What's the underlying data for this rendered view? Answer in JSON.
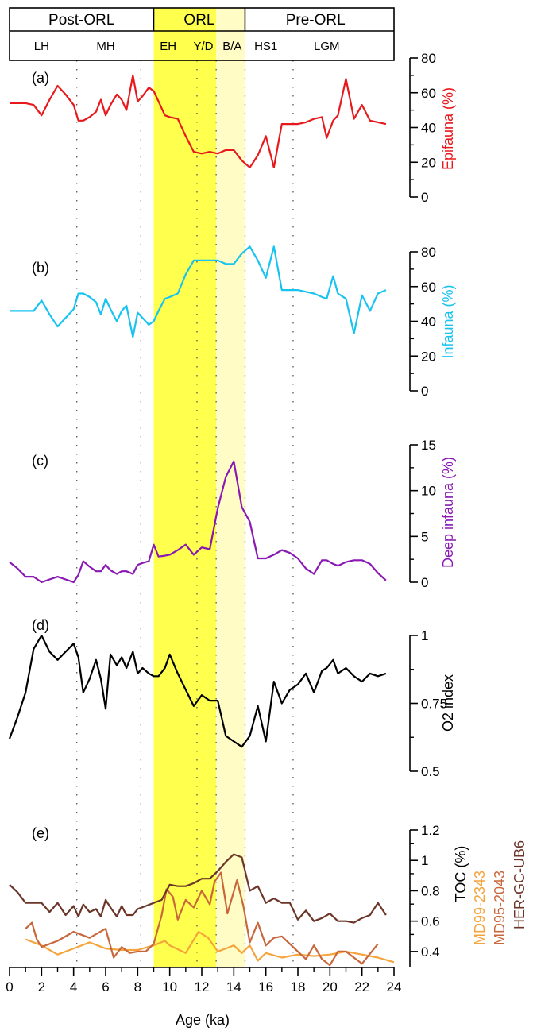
{
  "periods": [
    {
      "label": "Post-ORL",
      "start": 0,
      "end": 9
    },
    {
      "label": "ORL",
      "start": 9,
      "end": 14.7
    },
    {
      "label": "Pre-ORL",
      "start": 14.7,
      "end": 23.5
    }
  ],
  "stages": [
    {
      "label": "LH",
      "center": 2
    },
    {
      "label": "MH",
      "center": 6
    },
    {
      "label": "EH",
      "center": 9.9
    },
    {
      "label": "Y/D",
      "center": 12.1
    },
    {
      "label": "B/A",
      "center": 13.9
    },
    {
      "label": "HS1",
      "center": 16
    },
    {
      "label": "LGM",
      "center": 19.8
    }
  ],
  "stage_boundaries": [
    4.2,
    8.2,
    11.7,
    12.9,
    14.7,
    17.7
  ],
  "shading": [
    {
      "start": 9,
      "end": 12.9,
      "color": "#ffff4d"
    },
    {
      "start": 12.9,
      "end": 14.7,
      "color": "#fffcc6"
    }
  ],
  "x_axis": {
    "label": "Age (ka)",
    "range": [
      0,
      24
    ],
    "ticks": [
      "0",
      "2",
      "4",
      "6",
      "8",
      "10",
      "12",
      "14",
      "16",
      "18",
      "20",
      "22",
      "24"
    ]
  },
  "chart_data": [
    {
      "type": "line",
      "panel": "(a)",
      "ylabel": "Epifauna (%)",
      "ylim": [
        0,
        80
      ],
      "ticks": [
        "0",
        "20",
        "40",
        "60",
        "80"
      ],
      "series": [
        {
          "color": "#e8191d",
          "x": [
            0,
            0.5,
            1,
            1.5,
            2,
            2.5,
            3,
            3.5,
            4,
            4.3,
            4.6,
            5,
            5.4,
            5.7,
            6,
            6.3,
            6.7,
            7,
            7.3,
            7.7,
            8,
            8.3,
            8.7,
            9,
            9.3,
            9.7,
            10,
            10.5,
            11,
            11.5,
            12,
            12.5,
            13,
            13.5,
            14,
            14.5,
            15,
            15.5,
            16,
            16.5,
            17,
            17.5,
            18,
            18.5,
            19,
            19.5,
            19.8,
            20.2,
            20.5,
            21,
            21.5,
            22,
            22.5,
            23,
            23.5
          ],
          "y": [
            54,
            54,
            54,
            53,
            47,
            56,
            64,
            59,
            53,
            44,
            44,
            46,
            49,
            56,
            47,
            53,
            59,
            56,
            50,
            70,
            55,
            58,
            63,
            61,
            55,
            47,
            46,
            45,
            35,
            26,
            25,
            26,
            25,
            27,
            27,
            21,
            17,
            24,
            35,
            17,
            42,
            42,
            42,
            43,
            45,
            46,
            34,
            44,
            47,
            68,
            45,
            53,
            44,
            43,
            42
          ]
        }
      ]
    },
    {
      "type": "line",
      "panel": "(b)",
      "ylabel": "Infauna (%)",
      "ylim": [
        0,
        80
      ],
      "ticks": [
        "0",
        "20",
        "40",
        "60",
        "80"
      ],
      "series": [
        {
          "color": "#19c3f0",
          "x": [
            0,
            0.5,
            1,
            1.5,
            2,
            2.5,
            3,
            3.5,
            4,
            4.3,
            4.6,
            5,
            5.4,
            5.7,
            6,
            6.3,
            6.7,
            7,
            7.3,
            7.7,
            8,
            8.3,
            8.7,
            9,
            9.3,
            9.7,
            10,
            10.5,
            11,
            11.5,
            12,
            12.5,
            13,
            13.5,
            14,
            14.5,
            15,
            15.5,
            16,
            16.5,
            17,
            17.5,
            18,
            18.5,
            19,
            19.5,
            19.8,
            20.2,
            20.5,
            21,
            21.5,
            22,
            22.5,
            23,
            23.5
          ],
          "y": [
            46,
            46,
            46,
            46,
            52,
            44,
            37,
            42,
            47,
            56,
            56,
            54,
            51,
            44,
            53,
            47,
            40,
            46,
            49,
            31,
            45,
            42,
            38,
            40,
            46,
            53,
            54,
            56,
            67,
            75,
            75,
            75,
            75,
            73,
            73,
            79,
            83,
            75,
            65,
            83,
            58,
            58,
            58,
            57,
            56,
            54,
            53,
            66,
            56,
            53,
            33,
            55,
            46,
            56,
            58
          ]
        }
      ]
    },
    {
      "type": "line",
      "panel": "(c)",
      "ylabel": "Deep infauna (%)",
      "ylim": [
        0,
        15
      ],
      "ticks": [
        "0",
        "5",
        "10",
        "15"
      ],
      "series": [
        {
          "color": "#8a19b4",
          "x": [
            0,
            0.5,
            1,
            1.5,
            2,
            2.5,
            3,
            3.5,
            4,
            4.3,
            4.6,
            5,
            5.4,
            5.7,
            6,
            6.3,
            6.7,
            7,
            7.3,
            7.7,
            8,
            8.3,
            8.7,
            9,
            9.3,
            9.7,
            10,
            10.5,
            11,
            11.5,
            12,
            12.5,
            13,
            13.5,
            14,
            14.5,
            15,
            15.5,
            16,
            16.5,
            17,
            17.5,
            18,
            18.5,
            19,
            19.5,
            19.8,
            20.2,
            20.5,
            21,
            21.5,
            22,
            22.5,
            23,
            23.5
          ],
          "y": [
            2.2,
            1.5,
            0.6,
            0.6,
            0,
            0.3,
            0.6,
            0.3,
            0,
            0.8,
            2.3,
            1.7,
            1.2,
            1.2,
            1.9,
            1.3,
            0.9,
            1.2,
            1.2,
            0.9,
            1.9,
            2.1,
            2.3,
            4.1,
            2.8,
            2.9,
            3,
            3.5,
            4.1,
            3,
            3.8,
            3.6,
            8.1,
            11.5,
            13.2,
            8.2,
            6.6,
            2.6,
            2.6,
            3.0,
            3.5,
            3.2,
            2.6,
            1.5,
            0.9,
            2.4,
            2.4,
            2.0,
            1.8,
            2.2,
            2.4,
            2.4,
            2.0,
            1.0,
            0.2
          ]
        }
      ]
    },
    {
      "type": "line",
      "panel": "(d)",
      "ylabel": "O2 index",
      "ylim": [
        0.5,
        1
      ],
      "ticks": [
        "0.5",
        "0.75",
        "1"
      ],
      "series": [
        {
          "color": "#000000",
          "x": [
            0,
            0.5,
            1,
            1.5,
            2,
            2.5,
            3,
            3.5,
            4,
            4.3,
            4.6,
            5,
            5.4,
            5.7,
            6,
            6.3,
            6.7,
            7,
            7.3,
            7.7,
            8,
            8.3,
            8.7,
            9,
            9.3,
            9.7,
            10,
            10.5,
            11,
            11.5,
            12,
            12.5,
            13,
            13.5,
            14,
            14.5,
            15,
            15.5,
            16,
            16.5,
            17,
            17.5,
            18,
            18.5,
            19,
            19.5,
            19.8,
            20.2,
            20.5,
            21,
            21.5,
            22,
            22.5,
            23,
            23.5
          ],
          "y": [
            0.62,
            0.7,
            0.79,
            0.95,
            1.0,
            0.94,
            0.91,
            0.94,
            0.97,
            0.92,
            0.79,
            0.84,
            0.91,
            0.84,
            0.73,
            0.93,
            0.89,
            0.92,
            0.88,
            0.94,
            0.86,
            0.88,
            0.86,
            0.85,
            0.85,
            0.88,
            0.93,
            0.86,
            0.8,
            0.74,
            0.78,
            0.76,
            0.76,
            0.63,
            0.61,
            0.59,
            0.63,
            0.74,
            0.61,
            0.83,
            0.75,
            0.8,
            0.82,
            0.86,
            0.79,
            0.87,
            0.88,
            0.91,
            0.86,
            0.88,
            0.85,
            0.83,
            0.86,
            0.85,
            0.86
          ]
        }
      ]
    },
    {
      "type": "line",
      "panel": "(e)",
      "ylabel": "TOC (%)",
      "ylim": [
        0.3,
        1.2
      ],
      "ticks": [
        "0.4",
        "0.6",
        "0.8",
        "1",
        "1.2"
      ],
      "series": [
        {
          "name": "MD99-2343",
          "color": "#f5a43c",
          "x": [
            1,
            1.5,
            2,
            3,
            4,
            5,
            6,
            7,
            8,
            9,
            9.7,
            10,
            11,
            11.8,
            12.4,
            13,
            13.5,
            14,
            14.5,
            15,
            15.5,
            16,
            17,
            18,
            19,
            20,
            21,
            22,
            23,
            24
          ],
          "y": [
            0.48,
            0.46,
            0.44,
            0.38,
            0.42,
            0.46,
            0.42,
            0.41,
            0.41,
            0.44,
            0.47,
            0.44,
            0.39,
            0.53,
            0.49,
            0.4,
            0.42,
            0.44,
            0.39,
            0.44,
            0.34,
            0.39,
            0.36,
            0.38,
            0.37,
            0.38,
            0.4,
            0.38,
            0.36,
            0.33
          ]
        },
        {
          "name": "MD95-2043",
          "color": "#c9673c",
          "x": [
            1,
            1.4,
            1.7,
            2,
            3,
            4,
            5,
            6,
            6.5,
            7,
            7.5,
            8,
            8.5,
            9,
            9.5,
            9.8,
            10.2,
            10.5,
            11,
            11.5,
            12,
            12.5,
            12.8,
            13.2,
            13.6,
            14.2,
            14.6,
            15,
            15.5,
            16,
            16.5,
            17,
            18,
            18.5,
            19,
            19.5,
            20,
            20.5,
            21,
            22,
            23
          ],
          "y": [
            0.55,
            0.59,
            0.48,
            0.43,
            0.47,
            0.53,
            0.49,
            0.55,
            0.36,
            0.43,
            0.39,
            0.4,
            0.4,
            0.45,
            0.64,
            0.81,
            0.76,
            0.61,
            0.74,
            0.69,
            0.8,
            0.71,
            0.86,
            0.92,
            0.65,
            0.87,
            0.7,
            0.46,
            0.59,
            0.44,
            0.49,
            0.5,
            0.4,
            0.35,
            0.44,
            0.35,
            0.31,
            0.4,
            0.4,
            0.32,
            0.45
          ]
        },
        {
          "name": "HER-GC-UB6",
          "color": "#6b3528",
          "x": [
            0,
            0.5,
            1,
            1.5,
            2,
            2.5,
            3,
            3.5,
            4,
            4.3,
            4.6,
            5,
            5.4,
            5.7,
            6,
            6.3,
            6.7,
            7,
            7.3,
            7.7,
            8,
            8.5,
            9,
            9.5,
            10,
            10.5,
            11,
            11.5,
            12,
            12.5,
            13,
            13.5,
            14,
            14.5,
            15,
            15.5,
            16,
            16.5,
            17,
            17.5,
            18,
            18.5,
            19,
            19.5,
            20,
            20.5,
            21,
            21.5,
            22,
            22.5,
            23,
            23.5
          ],
          "y": [
            0.84,
            0.79,
            0.72,
            0.72,
            0.72,
            0.66,
            0.72,
            0.64,
            0.7,
            0.63,
            0.71,
            0.66,
            0.68,
            0.63,
            0.74,
            0.69,
            0.63,
            0.7,
            0.64,
            0.64,
            0.68,
            0.7,
            0.72,
            0.74,
            0.84,
            0.83,
            0.83,
            0.85,
            0.88,
            0.88,
            0.93,
            0.99,
            1.04,
            1.02,
            0.8,
            0.83,
            0.72,
            0.75,
            0.72,
            0.72,
            0.61,
            0.67,
            0.6,
            0.62,
            0.65,
            0.6,
            0.6,
            0.59,
            0.62,
            0.64,
            0.72,
            0.64
          ]
        }
      ]
    }
  ]
}
